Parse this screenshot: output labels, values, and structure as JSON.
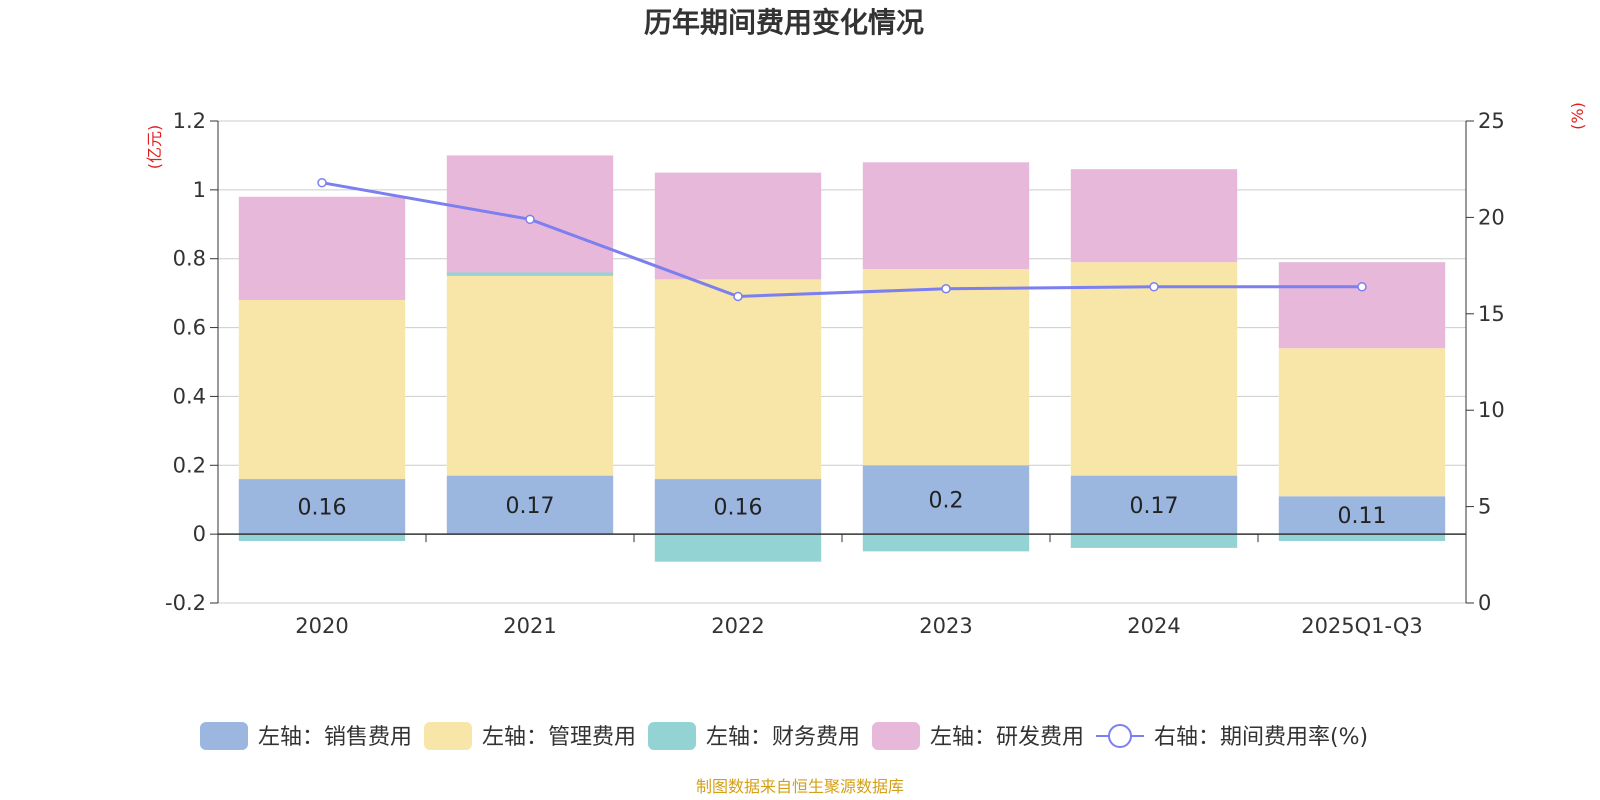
{
  "chart_data": {
    "type": "bar",
    "title": "历年期间费用变化情况",
    "categories": [
      "2020",
      "2021",
      "2022",
      "2023",
      "2024",
      "2025Q1-Q3"
    ],
    "left_axis": {
      "unit": "(亿元)",
      "ylim": [
        -0.2,
        1.2
      ],
      "ticks": [
        1.2,
        1,
        0.8,
        0.6,
        0.4,
        0.2,
        0,
        -0.2
      ],
      "tick_labels": [
        "1.2",
        "1",
        "0.8",
        "0.6",
        "0.4",
        "0.2",
        "0",
        "-0.2"
      ]
    },
    "right_axis": {
      "unit": "(%)",
      "ylim": [
        0,
        25
      ],
      "ticks": [
        25,
        20,
        15,
        10,
        5,
        0
      ],
      "tick_labels": [
        "25",
        "20",
        "15",
        "10",
        "5",
        "0"
      ]
    },
    "stacked": true,
    "series": [
      {
        "name": "左轴：销售费用",
        "axis": "left",
        "type": "bar",
        "color": "#9bb7e0",
        "values": [
          0.16,
          0.17,
          0.16,
          0.2,
          0.17,
          0.11
        ],
        "data_labels": [
          "0.16",
          "0.17",
          "0.16",
          "0.2",
          "0.17",
          "0.11"
        ]
      },
      {
        "name": "左轴：管理费用",
        "axis": "left",
        "type": "bar",
        "color": "#f7e6a7",
        "values": [
          0.52,
          0.58,
          0.58,
          0.57,
          0.62,
          0.43
        ]
      },
      {
        "name": "左轴：财务费用",
        "axis": "left",
        "type": "bar",
        "color": "#94d3d4",
        "values": [
          -0.02,
          0.01,
          -0.08,
          -0.05,
          -0.04,
          -0.02
        ]
      },
      {
        "name": "左轴：研发费用",
        "axis": "left",
        "type": "bar",
        "color": "#e7b8d9",
        "values": [
          0.3,
          0.34,
          0.31,
          0.31,
          0.27,
          0.25
        ]
      },
      {
        "name": "右轴：期间费用率(%)",
        "axis": "right",
        "type": "line",
        "color": "#7b7ff0",
        "values": [
          21.8,
          19.9,
          15.9,
          16.3,
          16.4,
          16.4
        ]
      }
    ],
    "grid": true,
    "legend_position": "bottom"
  },
  "footer": {
    "source": "制图数据来自恒生聚源数据库",
    "source_color": "#d4a017"
  }
}
